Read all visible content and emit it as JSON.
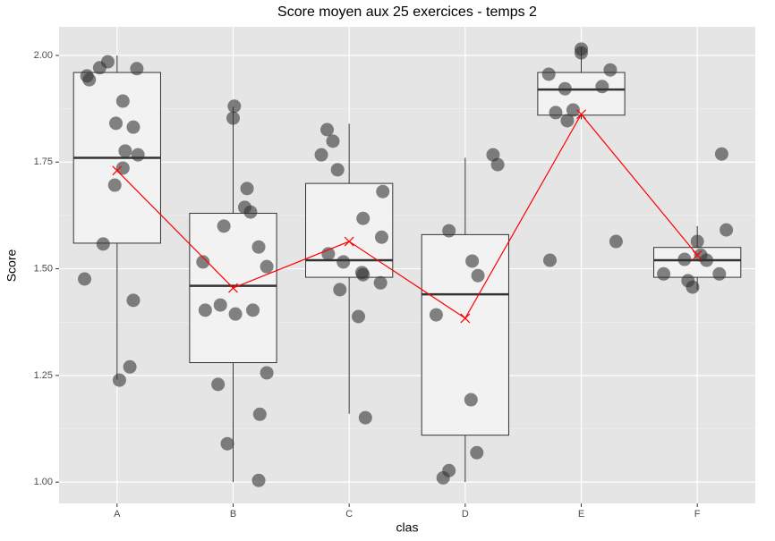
{
  "chart_data": {
    "type": "box",
    "title": "Score moyen aux 25 exercices - temps 2",
    "x_label": "clas",
    "y_label": "Score",
    "categories": [
      "A",
      "B",
      "C",
      "D",
      "E",
      "F"
    ],
    "boxes": {
      "min": [
        1.24,
        1.0,
        1.16,
        1.0,
        1.85,
        1.45
      ],
      "q1": [
        1.56,
        1.28,
        1.48,
        1.11,
        1.86,
        1.48
      ],
      "median": [
        1.76,
        1.46,
        1.52,
        1.44,
        1.92,
        1.52
      ],
      "q3": [
        1.96,
        1.63,
        1.7,
        1.58,
        1.96,
        1.55
      ],
      "max": [
        2.0,
        1.88,
        1.84,
        1.76,
        2.02,
        1.6
      ]
    },
    "box_color": "#f2f2f2",
    "means": {
      "values": [
        1.73,
        1.455,
        1.564,
        1.384,
        1.862,
        1.532
      ],
      "color": "#ff0000"
    },
    "points": {
      "color": "#333333",
      "x": [
        0.72,
        0.74,
        0.76,
        0.85,
        0.92,
        1.17,
        1.05,
        0.99,
        1.14,
        1.07,
        1.18,
        1.05,
        0.98,
        0.88,
        1.14,
        1.11,
        1.02,
        2.01,
        2.0,
        2.12,
        2.1,
        2.15,
        1.92,
        2.22,
        2.29,
        1.74,
        1.89,
        1.76,
        2.02,
        2.17,
        2.29,
        1.87,
        2.23,
        1.95,
        2.22,
        2.81,
        2.86,
        2.76,
        2.9,
        3.29,
        3.12,
        3.28,
        2.82,
        2.95,
        3.11,
        3.12,
        3.27,
        2.92,
        3.08,
        3.14,
        4.24,
        4.28,
        3.86,
        4.06,
        4.11,
        3.75,
        4.05,
        4.1,
        3.86,
        3.81,
        5.0,
        5.0,
        5.25,
        4.72,
        4.86,
        5.18,
        4.78,
        4.93,
        4.88,
        5.3,
        4.73,
        6.21,
        6.25,
        6.0,
        6.03,
        5.89,
        6.08,
        5.71,
        6.19,
        5.92,
        5.96
      ],
      "y": [
        1.476,
        1.952,
        1.943,
        1.971,
        1.985,
        1.969,
        1.893,
        1.841,
        1.832,
        1.776,
        1.767,
        1.736,
        1.696,
        1.558,
        1.426,
        1.27,
        1.239,
        1.881,
        1.853,
        1.688,
        1.644,
        1.633,
        1.6,
        1.551,
        1.505,
        1.516,
        1.415,
        1.403,
        1.394,
        1.403,
        1.256,
        1.229,
        1.159,
        1.09,
        1.004,
        1.826,
        1.799,
        1.767,
        1.732,
        1.681,
        1.618,
        1.574,
        1.535,
        1.516,
        1.491,
        1.486,
        1.467,
        1.451,
        1.388,
        1.151,
        1.767,
        1.744,
        1.589,
        1.518,
        1.484,
        1.392,
        1.193,
        1.069,
        1.027,
        1.01,
        2.015,
        2.006,
        1.966,
        1.956,
        1.922,
        1.927,
        1.866,
        1.872,
        1.847,
        1.564,
        1.52,
        1.769,
        1.591,
        1.564,
        1.532,
        1.522,
        1.52,
        1.488,
        1.488,
        1.472,
        1.457
      ]
    },
    "xlim": [
      0.5,
      6.5
    ],
    "ylim": [
      0.95,
      2.067
    ],
    "yticks": [
      {
        "value": 1,
        "label": "1.00"
      },
      {
        "value": 1.25,
        "label": "1.25"
      },
      {
        "value": 1.5,
        "label": "1.50"
      },
      {
        "value": 1.75,
        "label": "1.75"
      },
      {
        "value": 2,
        "label": "2.00"
      }
    ],
    "grid": true
  }
}
